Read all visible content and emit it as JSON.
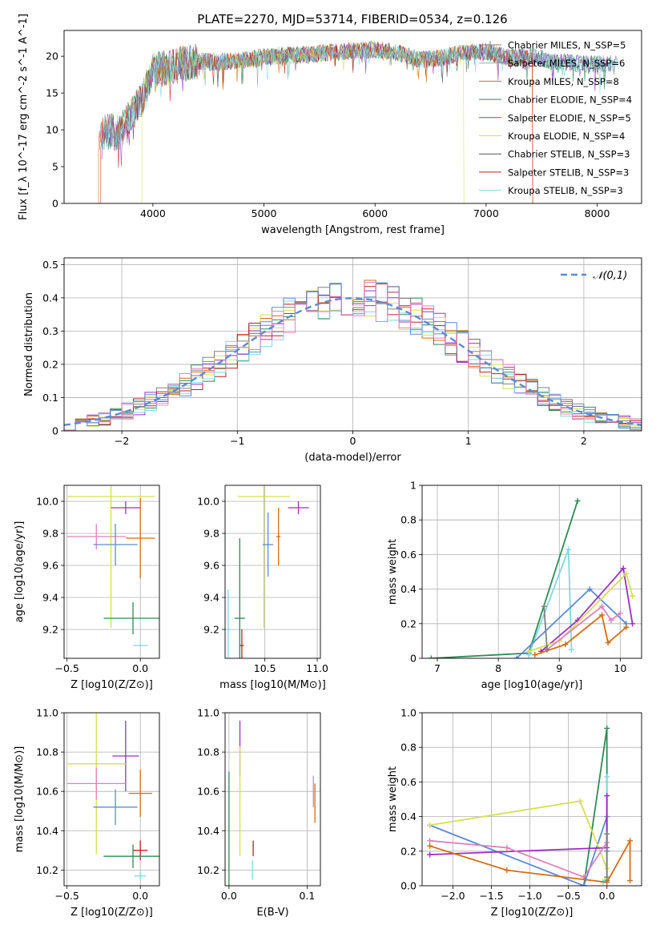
{
  "figure": {
    "title": "PLATE=2270, MJD=53714, FIBERID=0534, z=0.126"
  },
  "chart_data": [
    {
      "id": "spectrum",
      "type": "line",
      "xlabel": "wavelength [Angstrom, rest frame]",
      "ylabel": "Flux [f_λ 10^-17 erg cm^-2 s^-1 A^-1]",
      "xlim": [
        3200,
        8400
      ],
      "ylim": [
        0,
        23.5
      ],
      "xticks": [
        4000,
        5000,
        6000,
        7000,
        8000
      ],
      "yticks": [
        0,
        5,
        10,
        15,
        20
      ],
      "legend_position": "top-right",
      "series": [
        {
          "name": "Chabrier MILES, N_SSP=5",
          "color": "#808080",
          "marker": "|"
        },
        {
          "name": "Salpeter MILES, N_SSP=6",
          "color": "#7fb1b3"
        },
        {
          "name": "Kroupa MILES, N_SSP=8",
          "color": "#d46e14"
        },
        {
          "name": "Chabrier ELODIE, N_SSP=4",
          "color": "#2e8b57"
        },
        {
          "name": "Salpeter ELODIE, N_SSP=5",
          "color": "#9b30c0"
        },
        {
          "name": "Kroupa ELODIE, N_SSP=4",
          "color": "#d4e050"
        },
        {
          "name": "Chabrier STELIB, N_SSP=3",
          "color": "#555555"
        },
        {
          "name": "Salpeter STELIB, N_SSP=3",
          "color": "#c02020"
        },
        {
          "name": "Kroupa STELIB, N_SSP=3",
          "color": "#80d8e0"
        }
      ],
      "continuum": {
        "x": [
          3500,
          3700,
          3900,
          4000,
          4200,
          4400,
          4600,
          4800,
          5000,
          5200,
          5400,
          5600,
          5800,
          6000,
          6200,
          6400,
          6600,
          6800,
          7000,
          7200,
          7400,
          7600,
          7800,
          8000,
          8200
        ],
        "y": [
          9.8,
          9.7,
          14.0,
          18.0,
          18.7,
          19.3,
          19.2,
          19.5,
          19.9,
          20.1,
          20.2,
          20.5,
          20.7,
          20.9,
          20.5,
          19.5,
          19.8,
          20.5,
          20.6,
          19.8,
          20.0,
          19.4,
          19.0,
          18.9,
          19.1
        ]
      }
    },
    {
      "id": "residuals",
      "type": "histogram",
      "xlabel": "(data-model)/error",
      "ylabel": "Normed distribution",
      "xlim": [
        -2.5,
        2.5
      ],
      "ylim": [
        0,
        0.52
      ],
      "xticks": [
        -2,
        -1,
        0,
        1,
        2
      ],
      "yticks": [
        0.0,
        0.1,
        0.2,
        0.3,
        0.4,
        0.5
      ],
      "grid": true,
      "legend": "𝒩(0,1)",
      "legend_position": "top-right",
      "reference_curve": {
        "type": "normal",
        "mean": 0,
        "sigma": 1,
        "color": "#5b8bd6"
      },
      "bin_width": 0.1
    },
    {
      "id": "age-vs-Z",
      "type": "scatter",
      "xlabel": "Z [log10(Z/Z⊙)]",
      "ylabel": "age [log10(age/yr)]",
      "xlim": [
        -0.52,
        0.13
      ],
      "ylim": [
        9.02,
        10.1
      ],
      "xticks": [
        -0.5,
        0.0
      ],
      "yticks": [
        9.2,
        9.4,
        9.6,
        9.8,
        10.0
      ],
      "points": [
        {
          "x": -0.2,
          "y": 10.03,
          "xerr": 0.3,
          "yerr": 0.82,
          "color": "#d4e050"
        },
        {
          "x": -0.1,
          "y": 9.96,
          "xerr": 0.1,
          "yerr": 0.04,
          "color": "#9b30c0"
        },
        {
          "x": -0.3,
          "y": 9.78,
          "xerr": 0.2,
          "yerr": 0.08,
          "color": "#e080c0"
        },
        {
          "x": -0.17,
          "y": 9.73,
          "xerr": 0.15,
          "yerr": 0.13,
          "color": "#5b8bd6"
        },
        {
          "x": 0.0,
          "y": 9.77,
          "xerr": 0.1,
          "yerr": 0.25,
          "color": "#d46e14"
        },
        {
          "x": -0.05,
          "y": 9.27,
          "xerr": 0.2,
          "yerr": 0.1,
          "color": "#2e8b57"
        },
        {
          "x": 0.0,
          "y": 9.1,
          "xerr": 0.05,
          "yerr": 0.01,
          "color": "#80d8e0"
        }
      ]
    },
    {
      "id": "age-vs-mass",
      "type": "scatter",
      "xlabel": "mass [log10(M/M⊙)]",
      "ylabel": "",
      "xlim": [
        10.12,
        11.03
      ],
      "ylim": [
        9.02,
        10.1
      ],
      "xticks": [
        10.5,
        11.0
      ],
      "yticks": [
        9.2,
        9.4,
        9.6,
        9.8,
        10.0
      ],
      "points": [
        {
          "x": 10.49,
          "y": 10.03,
          "xerr": 0.25,
          "yerr": 0.82,
          "color": "#d4e050"
        },
        {
          "x": 10.82,
          "y": 9.96,
          "xerr": 0.1,
          "yerr": 0.04,
          "color": "#9b30c0"
        },
        {
          "x": 10.63,
          "y": 9.78,
          "xerr": 0.02,
          "yerr": 0.18,
          "color": "#d46e14"
        },
        {
          "x": 10.53,
          "y": 9.73,
          "xerr": 0.05,
          "yerr": 0.2,
          "color": "#5b8bd6"
        },
        {
          "x": 10.26,
          "y": 9.27,
          "xerr": 0.05,
          "yerr": 0.5,
          "color": "#2e8b57"
        },
        {
          "x": 10.28,
          "y": 9.1,
          "xerr": 0.02,
          "yerr": 0.1,
          "color": "#c02020"
        },
        {
          "x": 10.15,
          "y": 9.2,
          "xerr": 0.02,
          "yerr": 0.25,
          "color": "#80d8e0"
        }
      ]
    },
    {
      "id": "weight-vs-age",
      "type": "line",
      "xlabel": "age [log10(age/yr)]",
      "ylabel": "mass weight",
      "xlim": [
        6.75,
        10.35
      ],
      "ylim": [
        0,
        1.0
      ],
      "xticks": [
        7,
        8,
        9,
        10
      ],
      "yticks": [
        0.0,
        0.2,
        0.4,
        0.6,
        0.8,
        1.0
      ],
      "grid": true,
      "series": [
        {
          "color": "#2e8b57",
          "x": [
            6.9,
            8.5,
            9.3
          ],
          "y": [
            0.0,
            0.03,
            0.91
          ]
        },
        {
          "color": "#80d8e0",
          "x": [
            8.5,
            9.15,
            9.2
          ],
          "y": [
            0.02,
            0.63,
            0.05
          ]
        },
        {
          "color": "#5b8bd6",
          "x": [
            8.3,
            9.5,
            10.1
          ],
          "y": [
            0.0,
            0.4,
            0.2
          ]
        },
        {
          "color": "#9b30c0",
          "x": [
            8.7,
            9.3,
            10.05,
            10.2
          ],
          "y": [
            0.04,
            0.22,
            0.52,
            0.2
          ]
        },
        {
          "color": "#d4e050",
          "x": [
            8.5,
            9.0,
            10.1,
            10.2
          ],
          "y": [
            0.04,
            0.1,
            0.49,
            0.36
          ]
        },
        {
          "color": "#e080c0",
          "x": [
            8.8,
            9.7,
            9.85,
            10.0
          ],
          "y": [
            0.05,
            0.3,
            0.22,
            0.26
          ]
        },
        {
          "color": "#d46e14",
          "x": [
            8.6,
            9.1,
            9.7,
            9.8,
            10.1
          ],
          "y": [
            0.02,
            0.08,
            0.25,
            0.09,
            0.18
          ]
        },
        {
          "color": "#808080",
          "x": [
            8.75,
            8.8
          ],
          "y": [
            0.3,
            0.05
          ]
        }
      ]
    },
    {
      "id": "mass-vs-Z",
      "type": "scatter",
      "xlabel": "Z [log10(Z/Z⊙)]",
      "ylabel": "mass [log10(M/M⊙)]",
      "xlim": [
        -0.52,
        0.13
      ],
      "ylim": [
        10.12,
        11.0
      ],
      "xticks": [
        -0.5,
        0.0
      ],
      "yticks": [
        10.2,
        10.4,
        10.6,
        10.8,
        11.0
      ],
      "points": [
        {
          "x": -0.1,
          "y": 10.78,
          "xerr": 0.09,
          "yerr": 0.18,
          "color": "#9b30c0"
        },
        {
          "x": -0.3,
          "y": 10.74,
          "xerr": 0.2,
          "yerr": 0.46,
          "color": "#d4e050"
        },
        {
          "x": -0.3,
          "y": 10.64,
          "xerr": 0.2,
          "yerr": 0.08,
          "color": "#e080c0"
        },
        {
          "x": 0.0,
          "y": 10.59,
          "xerr": 0.08,
          "yerr": 0.12,
          "color": "#d46e14"
        },
        {
          "x": -0.17,
          "y": 10.52,
          "xerr": 0.15,
          "yerr": 0.09,
          "color": "#5b8bd6"
        },
        {
          "x": 0.0,
          "y": 10.3,
          "xerr": 0.05,
          "yerr": 0.05,
          "color": "#c02020"
        },
        {
          "x": -0.05,
          "y": 10.27,
          "xerr": 0.2,
          "yerr": 0.06,
          "color": "#2e8b57"
        },
        {
          "x": 0.0,
          "y": 10.17,
          "xerr": 0.04,
          "yerr": 0.02,
          "color": "#80d8e0"
        }
      ]
    },
    {
      "id": "mass-vs-EBV",
      "type": "scatter",
      "xlabel": "E(B-V)",
      "ylabel": "",
      "xlim": [
        -0.005,
        0.117
      ],
      "ylim": [
        10.12,
        11.0
      ],
      "xticks": [
        0.0,
        0.1
      ],
      "yticks": [
        10.2,
        10.4,
        10.6,
        10.8,
        11.0
      ],
      "points": [
        {
          "x": 0.014,
          "y": 10.82,
          "yerr": 0.14,
          "color": "#9b30c0"
        },
        {
          "x": 0.014,
          "y": 10.55,
          "yerr": 0.28,
          "color": "#d4e050"
        },
        {
          "x": 0.0,
          "y": 10.4,
          "yerr": 0.3,
          "color": "#2e8b57"
        },
        {
          "x": 0.031,
          "y": 10.31,
          "yerr": 0.04,
          "color": "#c02020"
        },
        {
          "x": 0.03,
          "y": 10.2,
          "yerr": 0.05,
          "color": "#80d8e0"
        },
        {
          "x": 0.108,
          "y": 10.6,
          "yerr": 0.08,
          "color": "#e080c0"
        },
        {
          "x": 0.11,
          "y": 10.54,
          "yerr": 0.1,
          "color": "#d46e14"
        }
      ]
    },
    {
      "id": "weight-vs-Z",
      "type": "line",
      "xlabel": "Z [log10(Z/Z⊙)]",
      "ylabel": "mass weight",
      "xlim": [
        -2.4,
        0.45
      ],
      "ylim": [
        0,
        1.0
      ],
      "xticks": [
        -2.0,
        -1.5,
        -1.0,
        -0.5,
        0.0
      ],
      "yticks": [
        0.0,
        0.2,
        0.4,
        0.6,
        0.8,
        1.0
      ],
      "grid": true,
      "series": [
        {
          "color": "#2e8b57",
          "x": [
            -0.3,
            0.0,
            0.0
          ],
          "y": [
            0.0,
            0.91,
            0.03
          ]
        },
        {
          "color": "#80d8e0",
          "x": [
            0.0,
            0.0,
            -0.05
          ],
          "y": [
            0.63,
            0.05,
            0.02
          ]
        },
        {
          "color": "#5b8bd6",
          "x": [
            -2.3,
            -0.3,
            0.0,
            0.0
          ],
          "y": [
            0.35,
            0.0,
            0.4,
            0.2
          ]
        },
        {
          "color": "#d4e050",
          "x": [
            -2.3,
            -0.35,
            0.0,
            0.0
          ],
          "y": [
            0.35,
            0.49,
            0.1,
            0.04
          ]
        },
        {
          "color": "#9b30c0",
          "x": [
            -2.3,
            0.0,
            0.0
          ],
          "y": [
            0.18,
            0.22,
            0.52
          ]
        },
        {
          "color": "#e080c0",
          "x": [
            -2.3,
            -1.3,
            -0.3,
            0.0
          ],
          "y": [
            0.26,
            0.22,
            0.05,
            0.25
          ]
        },
        {
          "color": "#d46e14",
          "x": [
            -2.3,
            -1.3,
            0.0,
            0.3,
            0.3
          ],
          "y": [
            0.23,
            0.09,
            0.02,
            0.26,
            0.03
          ]
        },
        {
          "color": "#808080",
          "x": [
            0.0,
            0.0
          ],
          "y": [
            0.3,
            0.05
          ]
        }
      ]
    }
  ]
}
